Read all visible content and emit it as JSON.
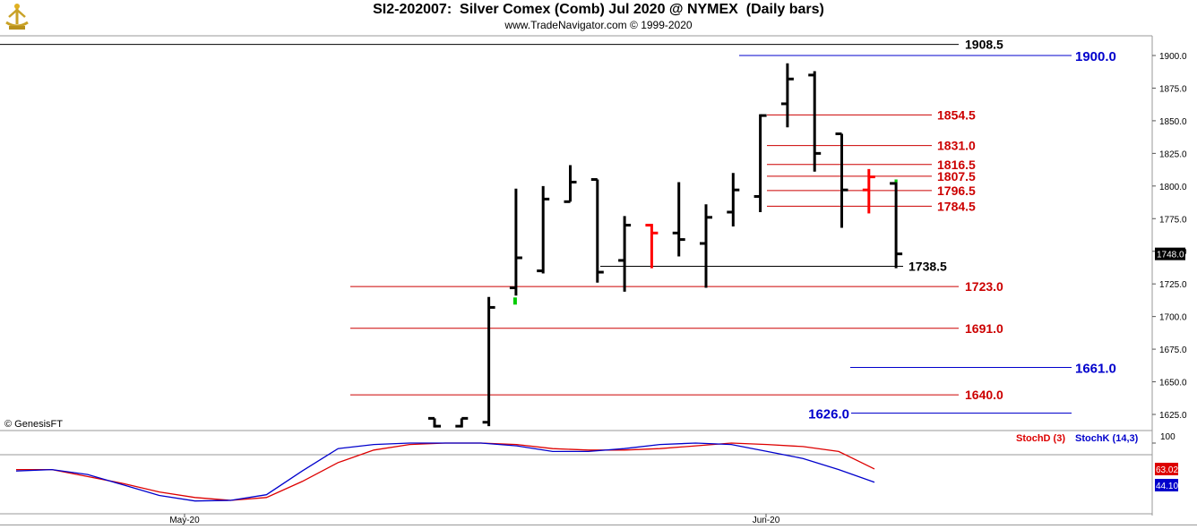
{
  "header": {
    "title": "SI2-202007:  Silver Comex (Comb) Jul 2020 @ NYMEX  (Daily bars)",
    "subtitle": "www.TradeNavigator.com © 1999-2020",
    "copyright": "© GenesisFT"
  },
  "colors": {
    "bar": "#000000",
    "highlight_bar": "#ff0000",
    "up_tick": "#00cc00",
    "support": "#cc0000",
    "target": "#0000cc",
    "stoch_d": "#dd0000",
    "stoch_k": "#0000cc",
    "last_price_bg": "#000000"
  },
  "chart_data": [
    {
      "type": "ohlc",
      "title": "SI2-202007:  Silver Comex (Comb) Jul 2020 @ NYMEX  (Daily bars)",
      "xlabel": "",
      "ylabel": "",
      "ylim": [
        1615,
        1910
      ],
      "yticks": [
        1900.0,
        1875.0,
        1850.0,
        1825.0,
        1800.0,
        1775.0,
        1750.0,
        1725.0,
        1700.0,
        1675.0,
        1650.0,
        1625.0
      ],
      "x_labels": [
        {
          "label": "May-20",
          "index": 0
        },
        {
          "label": "Jun-20",
          "index": 13
        }
      ],
      "last_price": "1748.0",
      "bars": [
        {
          "h": 1622,
          "l": 1615,
          "o": 1622,
          "c": 1616
        },
        {
          "h": 1622,
          "l": 1615,
          "o": 1616,
          "c": 1622
        },
        {
          "h": 1715,
          "l": 1616,
          "o": 1619,
          "c": 1707
        },
        {
          "h": 1798,
          "l": 1716,
          "o": 1722,
          "c": 1745
        },
        {
          "h": 1800,
          "l": 1733,
          "o": 1735,
          "c": 1790
        },
        {
          "h": 1816,
          "l": 1788,
          "o": 1788,
          "c": 1803
        },
        {
          "h": 1805,
          "l": 1726,
          "o": 1805,
          "c": 1734
        },
        {
          "h": 1777,
          "l": 1719,
          "o": 1743,
          "c": 1770
        },
        {
          "h": 1771,
          "l": 1737,
          "o": 1770,
          "c": 1764,
          "highlight": true
        },
        {
          "h": 1803,
          "l": 1746,
          "o": 1764,
          "c": 1759
        },
        {
          "h": 1786,
          "l": 1722,
          "o": 1756,
          "c": 1776
        },
        {
          "h": 1810,
          "l": 1769,
          "o": 1780,
          "c": 1797
        },
        {
          "h": 1855,
          "l": 1780,
          "o": 1792,
          "c": 1854
        },
        {
          "h": 1894,
          "l": 1845,
          "o": 1863,
          "c": 1882
        },
        {
          "h": 1888,
          "l": 1811,
          "o": 1885,
          "c": 1825
        },
        {
          "h": 1840,
          "l": 1768,
          "o": 1840,
          "c": 1797
        },
        {
          "h": 1813,
          "l": 1779,
          "o": 1797,
          "c": 1807,
          "highlight": true
        },
        {
          "h": 1805,
          "l": 1737,
          "o": 1802,
          "c": 1748,
          "up_tick": 1805
        }
      ],
      "levels": [
        {
          "label": "1908.5",
          "value": 1908.5,
          "kind": "resistance"
        },
        {
          "label": "1900.0",
          "value": 1900.0,
          "kind": "target"
        },
        {
          "label": "1854.5",
          "value": 1854.5,
          "kind": "support"
        },
        {
          "label": "1831.0",
          "value": 1831.0,
          "kind": "support"
        },
        {
          "label": "1816.5",
          "value": 1816.5,
          "kind": "support"
        },
        {
          "label": "1807.5",
          "value": 1807.5,
          "kind": "support"
        },
        {
          "label": "1796.5",
          "value": 1796.5,
          "kind": "support"
        },
        {
          "label": "1784.5",
          "value": 1784.5,
          "kind": "support"
        },
        {
          "label": "1738.5",
          "value": 1738.5,
          "kind": "resistance"
        },
        {
          "label": "1723.0",
          "value": 1723.0,
          "kind": "support"
        },
        {
          "label": "1691.0",
          "value": 1691.0,
          "kind": "support"
        },
        {
          "label": "1661.0",
          "value": 1661.0,
          "kind": "target"
        },
        {
          "label": "1640.0",
          "value": 1640.0,
          "kind": "support"
        },
        {
          "label": "1626.0",
          "value": 1626.0,
          "kind": "target"
        }
      ]
    },
    {
      "type": "line",
      "ylim": [
        0,
        100
      ],
      "yticks": [
        100
      ],
      "legend": "top-right",
      "series": [
        {
          "name": "StochD (3)",
          "last": "63.02",
          "values": [
            62,
            62,
            52,
            42,
            30,
            22,
            18,
            22,
            45,
            72,
            90,
            98,
            100,
            100,
            98,
            92,
            90,
            90,
            92,
            96,
            100,
            98,
            95,
            88,
            63
          ]
        },
        {
          "name": "StochK (14,3)",
          "last": "44.10",
          "values": [
            60,
            62,
            55,
            40,
            25,
            17,
            18,
            26,
            60,
            92,
            98,
            100,
            100,
            100,
            96,
            88,
            88,
            92,
            98,
            100,
            98,
            88,
            78,
            62,
            44
          ]
        }
      ]
    }
  ]
}
